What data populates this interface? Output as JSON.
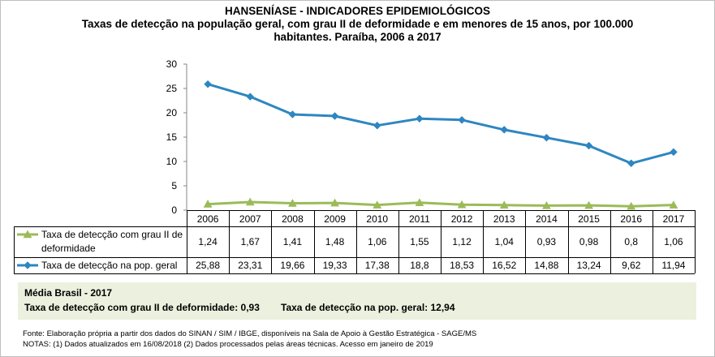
{
  "header": {
    "line1": "HANSENÍASE - INDICADORES EPIDEMIOLÓGICOS",
    "line2": "Taxas de detecção na população geral, com grau II de deformidade e em menores de 15 anos, por 100.000",
    "line3": "habitantes. Paraíba, 2006 a 2017"
  },
  "chart_data": {
    "type": "line",
    "title": "Taxas de detecção na população geral, com grau II de deformidade e em menores de 15 anos, por 100.000 habitantes. Paraíba, 2006 a 2017",
    "categories": [
      "2006",
      "2007",
      "2008",
      "2009",
      "2010",
      "2011",
      "2012",
      "2013",
      "2014",
      "2015",
      "2016",
      "2017"
    ],
    "ylim": [
      0,
      30
    ],
    "yticks": [
      "0",
      "5",
      "10",
      "15",
      "20",
      "25",
      "30"
    ],
    "series": [
      {
        "name_line1": "Taxa de detecção com grau II de",
        "name_line2": "deformidade",
        "color": "#9bbb59",
        "marker": "triangle",
        "values": [
          1.24,
          1.67,
          1.41,
          1.48,
          1.06,
          1.55,
          1.12,
          1.04,
          0.93,
          0.98,
          0.8,
          1.06
        ],
        "labels": [
          "1,24",
          "1,67",
          "1,41",
          "1,48",
          "1,06",
          "1,55",
          "1,12",
          "1,04",
          "0,93",
          "0,98",
          "0,8",
          "1,06"
        ]
      },
      {
        "name_line1": "Taxa de detecção na pop. geral",
        "name_line2": "",
        "color": "#2e86c1",
        "marker": "diamond",
        "values": [
          25.88,
          23.31,
          19.66,
          19.33,
          17.38,
          18.8,
          18.53,
          16.52,
          14.88,
          13.24,
          9.62,
          11.94
        ],
        "labels": [
          "25,88",
          "23,31",
          "19,66",
          "19,33",
          "17,38",
          "18,8",
          "18,53",
          "16,52",
          "14,88",
          "13,24",
          "9,62",
          "11,94"
        ]
      }
    ]
  },
  "summary": {
    "title": "Média Brasil - 2017",
    "item1": "Taxa de detecção com grau II de deformidade: 0,93",
    "item2": "Taxa de detecção na pop. geral: 12,94"
  },
  "notes": {
    "source": "Fonte: Elaboração própria a partir dos dados do SINAN / SIM / IBGE, disponíveis na Sala de Apoio à Gestão Estratégica - SAGE/MS",
    "notes": "NOTAS: (1) Dados atualizados em 16/08/2018 (2) Dados processados pelas áreas técnicas. Acesso em janeiro de 2019"
  }
}
